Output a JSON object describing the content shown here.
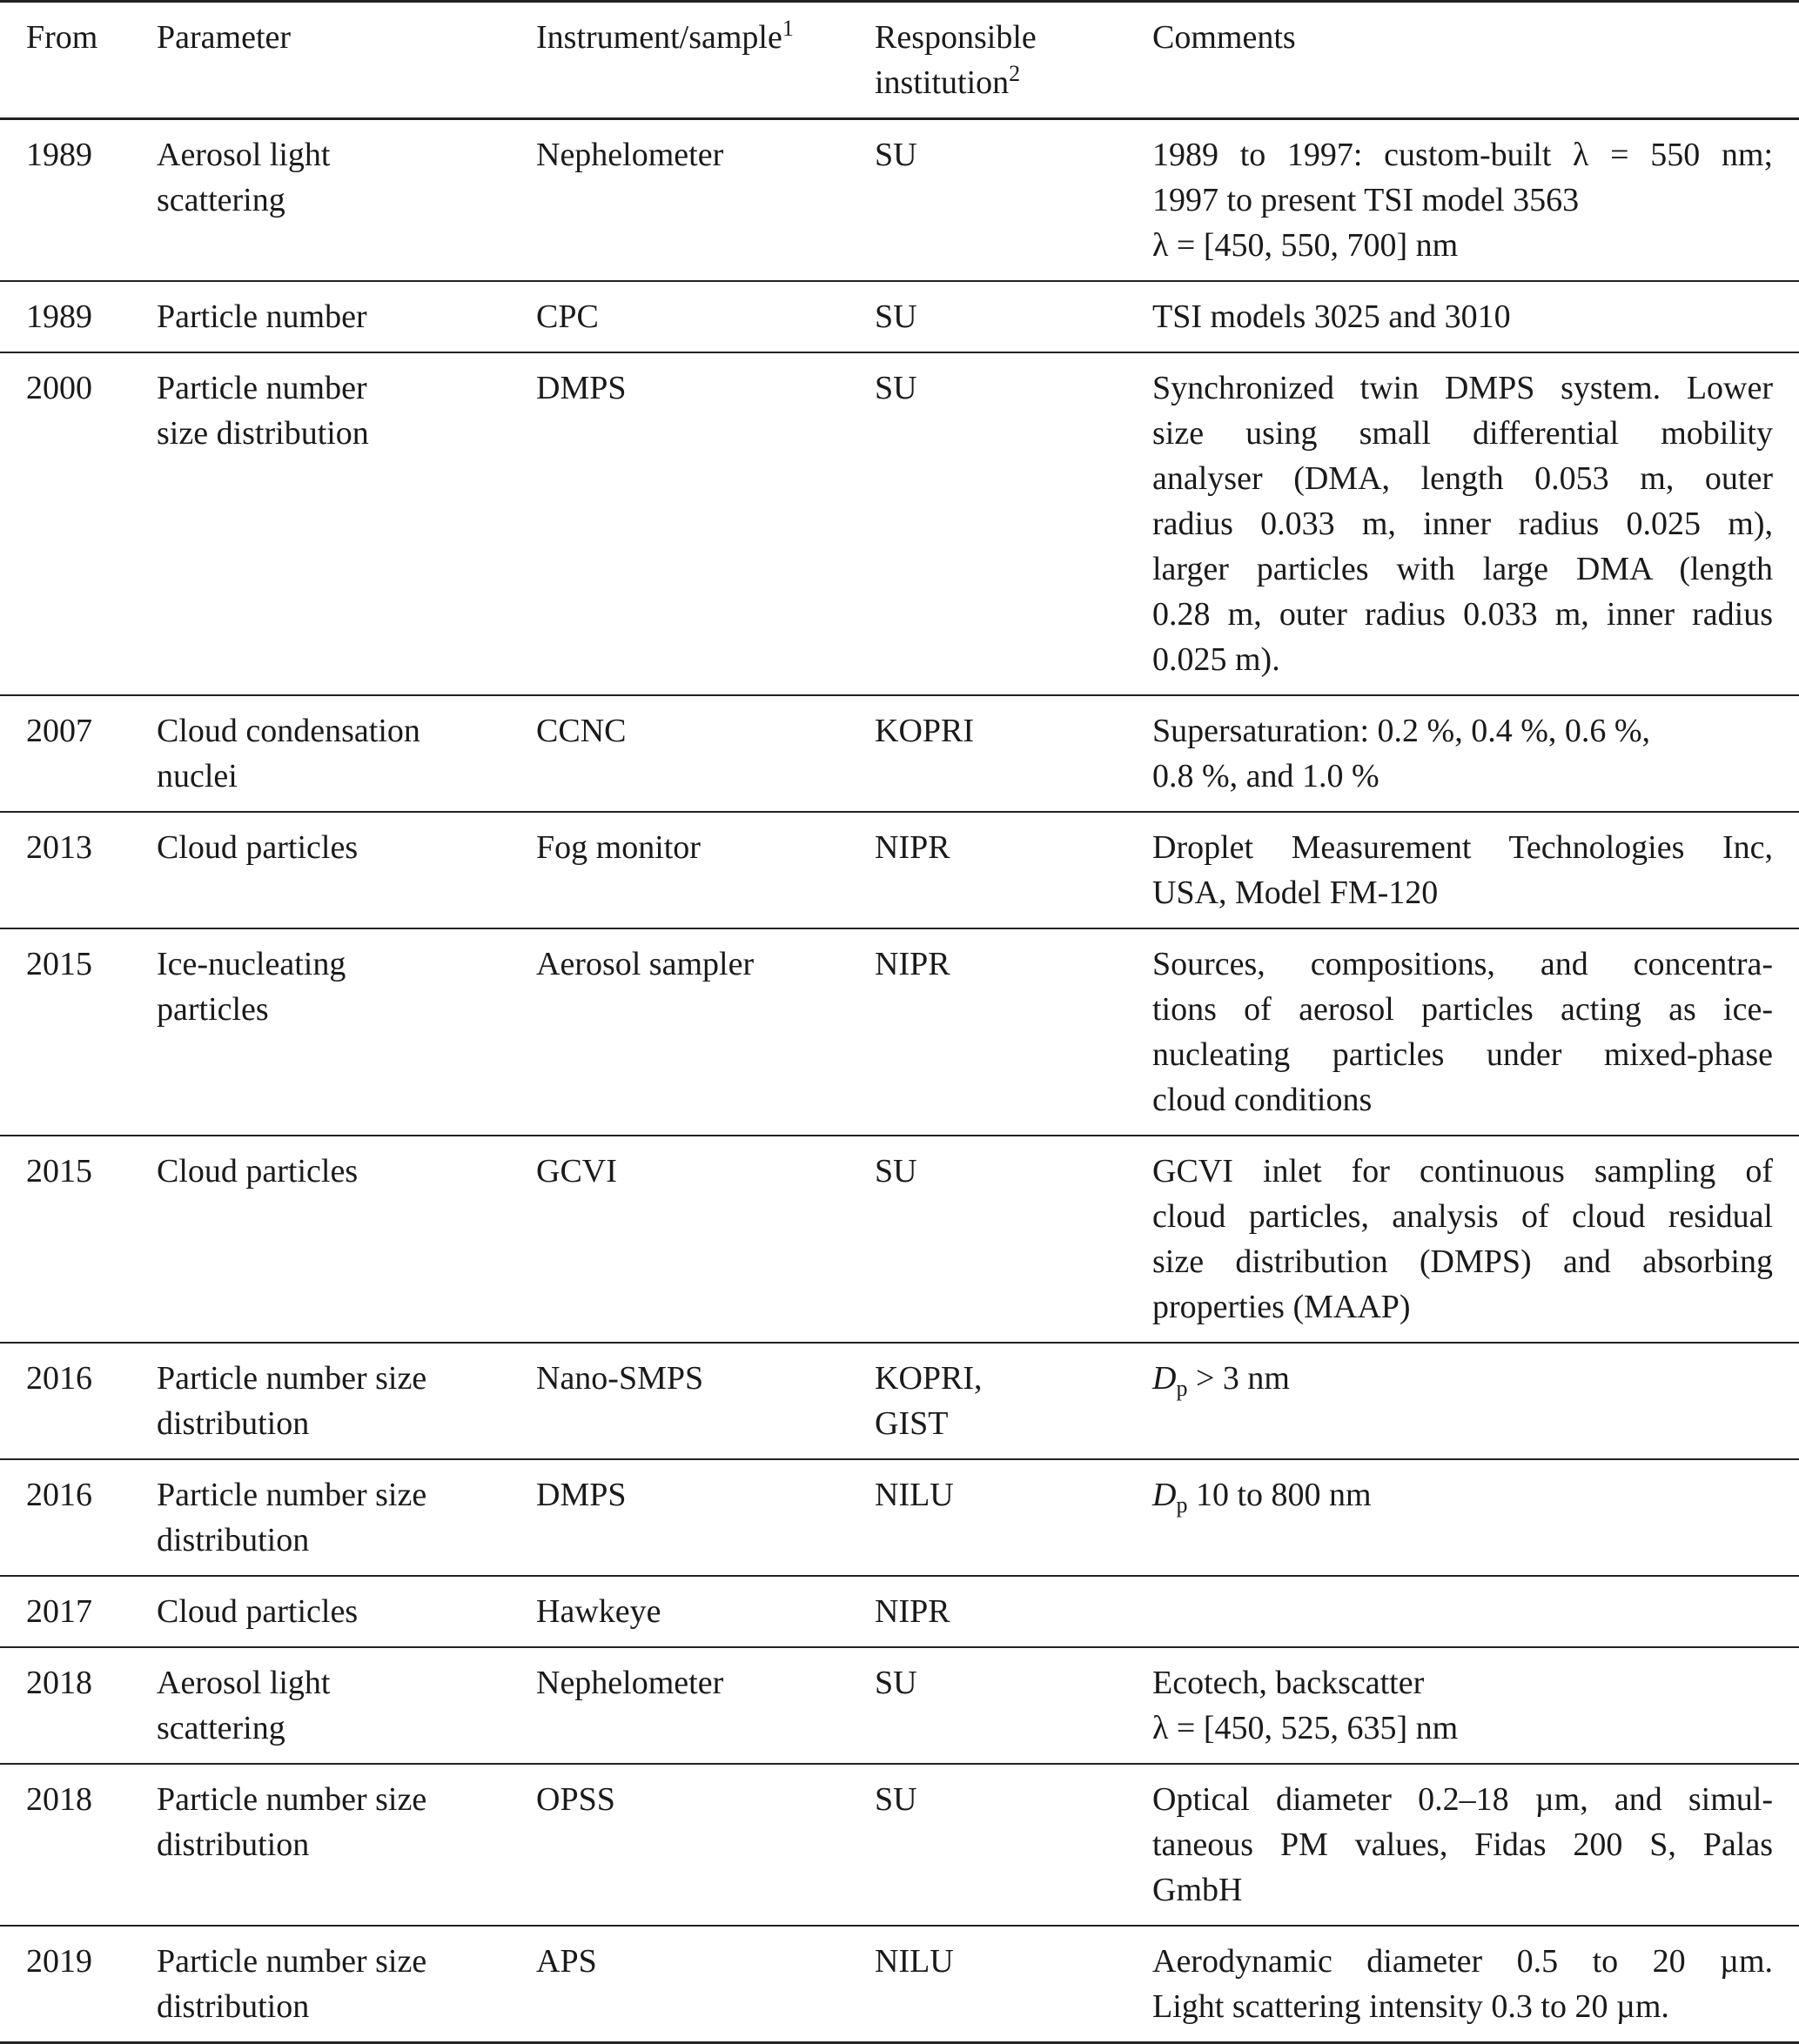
{
  "header": {
    "from": "From",
    "parameter": "Parameter",
    "instrument": "Instrument/sample",
    "instrument_note": "1",
    "institution_lines": [
      "Responsible",
      "institution"
    ],
    "institution_note": "2",
    "comments": "Comments"
  },
  "rows": [
    {
      "from": "1989",
      "parameter": [
        "Aerosol light",
        "scattering"
      ],
      "instrument": "Nephelometer",
      "institution": [
        "SU"
      ],
      "comments": [
        "1989 to 1997: custom-built λ = 550 nm;",
        "1997 to present TSI model 3563",
        "λ = [450, 550, 700] nm"
      ]
    },
    {
      "from": "1989",
      "parameter": [
        "Particle number"
      ],
      "instrument": "CPC",
      "institution": [
        "SU"
      ],
      "comments": [
        "TSI models 3025 and 3010"
      ]
    },
    {
      "from": "2000",
      "parameter": [
        "Particle number",
        "size distribution"
      ],
      "instrument": "DMPS",
      "institution": [
        "SU"
      ],
      "comments": [
        "Synchronized twin DMPS system. Lower",
        "size using small differential mobility",
        "analyser (DMA, length 0.053 m, outer",
        "radius 0.033 m, inner radius 0.025 m),",
        "larger particles with large DMA (length",
        "0.28 m, outer radius 0.033 m, inner radius",
        "0.025 m)."
      ]
    },
    {
      "from": "2007",
      "parameter": [
        "Cloud condensation",
        "nuclei"
      ],
      "instrument": "CCNC",
      "institution": [
        "KOPRI"
      ],
      "comments": [
        "Supersaturation: 0.2 %, 0.4 %, 0.6 %,",
        "0.8 %, and 1.0 %"
      ]
    },
    {
      "from": "2013",
      "parameter": [
        "Cloud particles"
      ],
      "instrument": "Fog monitor",
      "institution": [
        "NIPR"
      ],
      "comments": [
        "Droplet Measurement Technologies Inc,",
        "USA, Model FM-120"
      ]
    },
    {
      "from": "2015",
      "parameter": [
        "Ice-nucleating",
        "particles"
      ],
      "instrument": "Aerosol sampler",
      "institution": [
        "NIPR"
      ],
      "comments": [
        "Sources, compositions, and concentra-",
        "tions of aerosol particles acting as ice-",
        "nucleating particles under mixed-phase",
        "cloud conditions"
      ]
    },
    {
      "from": "2015",
      "parameter": [
        "Cloud particles"
      ],
      "instrument": "GCVI",
      "institution": [
        "SU"
      ],
      "comments": [
        "GCVI inlet for continuous sampling of",
        "cloud particles, analysis of cloud residual",
        "size distribution (DMPS) and absorbing",
        "properties (MAAP)"
      ]
    },
    {
      "from": "2016",
      "parameter": [
        "Particle number size",
        "distribution"
      ],
      "instrument": "Nano-SMPS",
      "institution": [
        "KOPRI,",
        "GIST"
      ],
      "comments": [
        "Dp > 3 nm"
      ]
    },
    {
      "from": "2016",
      "parameter": [
        "Particle number size",
        "distribution"
      ],
      "instrument": "DMPS",
      "institution": [
        "NILU"
      ],
      "comments": [
        "Dp 10 to 800 nm"
      ]
    },
    {
      "from": "2017",
      "parameter": [
        "Cloud particles"
      ],
      "instrument": "Hawkeye",
      "institution": [
        "NIPR"
      ],
      "comments": []
    },
    {
      "from": "2018",
      "parameter": [
        "Aerosol light",
        "scattering"
      ],
      "instrument": "Nephelometer",
      "institution": [
        "SU"
      ],
      "comments": [
        "Ecotech, backscatter",
        "λ = [450, 525, 635] nm"
      ]
    },
    {
      "from": "2018",
      "parameter": [
        "Particle number size",
        "distribution"
      ],
      "instrument": "OPSS",
      "institution": [
        "SU"
      ],
      "comments": [
        "Optical diameter 0.2–18 µm, and simul-",
        "taneous PM values, Fidas 200 S, Palas",
        "GmbH"
      ]
    },
    {
      "from": "2019",
      "parameter": [
        "Particle number size",
        "distribution"
      ],
      "instrument": "APS",
      "institution": [
        "NILU"
      ],
      "comments": [
        "Aerodynamic diameter 0.5 to 20 µm.",
        "Light scattering intensity 0.3 to 20 µm."
      ]
    }
  ]
}
